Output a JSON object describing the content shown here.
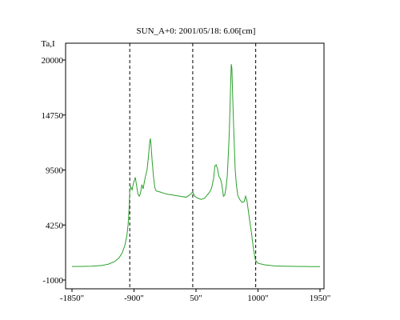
{
  "chart_data": {
    "type": "line",
    "title": "SUN_A+0: 2001/05/18: 6.06[cm]",
    "ylabel": "Ta,I",
    "xlabel": "",
    "xlim": [
      -1850,
      1950
    ],
    "ylim": [
      -1000,
      21500
    ],
    "x_ticks": [
      {
        "value": -1850,
        "label": "-1850\""
      },
      {
        "value": -900,
        "label": "-900\""
      },
      {
        "value": 50,
        "label": "50\""
      },
      {
        "value": 1000,
        "label": "1000\""
      },
      {
        "value": 1950,
        "label": "1950\""
      }
    ],
    "y_ticks": [
      {
        "value": -1000,
        "label": "-1000"
      },
      {
        "value": 4250,
        "label": "4250"
      },
      {
        "value": 9500,
        "label": "9500"
      },
      {
        "value": 14750,
        "label": "14750"
      },
      {
        "value": 20000,
        "label": "20000"
      }
    ],
    "reference_lines_x": [
      -965,
      0,
      965
    ],
    "grid": false,
    "line_color": "#2ca02c",
    "series": [
      {
        "values": [
          [
            -1850,
            290
          ],
          [
            -1700,
            300
          ],
          [
            -1550,
            320
          ],
          [
            -1400,
            380
          ],
          [
            -1300,
            500
          ],
          [
            -1200,
            750
          ],
          [
            -1130,
            1100
          ],
          [
            -1080,
            1600
          ],
          [
            -1040,
            2300
          ],
          [
            -1010,
            3200
          ],
          [
            -990,
            4300
          ],
          [
            -975,
            5800
          ],
          [
            -965,
            7500
          ],
          [
            -950,
            7900
          ],
          [
            -930,
            7600
          ],
          [
            -910,
            8200
          ],
          [
            -880,
            8800
          ],
          [
            -860,
            8000
          ],
          [
            -840,
            7200
          ],
          [
            -820,
            7000
          ],
          [
            -800,
            7300
          ],
          [
            -780,
            8100
          ],
          [
            -760,
            7700
          ],
          [
            -740,
            8400
          ],
          [
            -720,
            9000
          ],
          [
            -700,
            9500
          ],
          [
            -680,
            10700
          ],
          [
            -660,
            12100
          ],
          [
            -650,
            12500
          ],
          [
            -640,
            12000
          ],
          [
            -620,
            10200
          ],
          [
            -600,
            8800
          ],
          [
            -580,
            7800
          ],
          [
            -560,
            7500
          ],
          [
            -500,
            7400
          ],
          [
            -450,
            7300
          ],
          [
            -400,
            7200
          ],
          [
            -300,
            7100
          ],
          [
            -200,
            7000
          ],
          [
            -100,
            6900
          ],
          [
            -50,
            7100
          ],
          [
            0,
            7400
          ],
          [
            30,
            7000
          ],
          [
            80,
            6800
          ],
          [
            130,
            6700
          ],
          [
            180,
            6800
          ],
          [
            220,
            7100
          ],
          [
            260,
            7400
          ],
          [
            290,
            7800
          ],
          [
            320,
            8700
          ],
          [
            340,
            9900
          ],
          [
            360,
            10000
          ],
          [
            380,
            9600
          ],
          [
            400,
            8900
          ],
          [
            420,
            8700
          ],
          [
            440,
            8300
          ],
          [
            460,
            7500
          ],
          [
            470,
            7000
          ],
          [
            490,
            7100
          ],
          [
            510,
            7800
          ],
          [
            530,
            9000
          ],
          [
            560,
            13000
          ],
          [
            580,
            17500
          ],
          [
            590,
            19600
          ],
          [
            600,
            19200
          ],
          [
            610,
            17000
          ],
          [
            630,
            13000
          ],
          [
            650,
            9600
          ],
          [
            670,
            8000
          ],
          [
            690,
            7100
          ],
          [
            710,
            6800
          ],
          [
            730,
            6600
          ],
          [
            760,
            6400
          ],
          [
            790,
            6500
          ],
          [
            810,
            7000
          ],
          [
            830,
            6600
          ],
          [
            870,
            4800
          ],
          [
            900,
            3500
          ],
          [
            930,
            2000
          ],
          [
            960,
            900
          ],
          [
            1000,
            600
          ],
          [
            1100,
            450
          ],
          [
            1250,
            350
          ],
          [
            1400,
            320
          ],
          [
            1600,
            300
          ],
          [
            1800,
            280
          ],
          [
            1950,
            280
          ]
        ]
      }
    ]
  }
}
